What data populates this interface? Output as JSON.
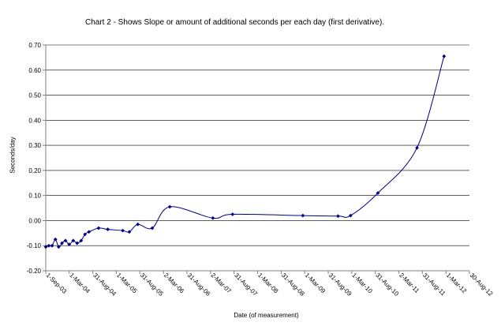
{
  "chart_data": {
    "type": "line",
    "title": "Chart 2 - Shows Slope or amount of additional seconds per each day  (first derivative).",
    "xlabel": "Date (of measurement)",
    "ylabel": "Seconds/day",
    "xlim": [
      "2003-09-01",
      "2012-08-30"
    ],
    "ylim": [
      -0.2,
      0.7
    ],
    "y_ticks": [
      "-0.20",
      "-0.10",
      "0.00",
      "0.10",
      "0.20",
      "0.30",
      "0.40",
      "0.50",
      "0.60",
      "0.70"
    ],
    "y_tick_values": [
      -0.2,
      -0.1,
      0.0,
      0.1,
      0.2,
      0.3,
      0.4,
      0.5,
      0.6,
      0.7
    ],
    "x_ticks": [
      {
        "label": "1-Sep-03",
        "date": "2003-09-01"
      },
      {
        "label": "1-Mar-04",
        "date": "2004-03-01"
      },
      {
        "label": "31-Aug-04",
        "date": "2004-08-31"
      },
      {
        "label": "1-Mar-05",
        "date": "2005-03-01"
      },
      {
        "label": "31-Aug-05",
        "date": "2005-08-31"
      },
      {
        "label": "2-Mar-06",
        "date": "2006-03-02"
      },
      {
        "label": "31-Aug-06",
        "date": "2006-08-31"
      },
      {
        "label": "2-Mar-07",
        "date": "2007-03-02"
      },
      {
        "label": "31-Aug-07",
        "date": "2007-08-31"
      },
      {
        "label": "1-Mar-08",
        "date": "2008-03-01"
      },
      {
        "label": "31-Aug-08",
        "date": "2008-08-31"
      },
      {
        "label": "1-Mar-09",
        "date": "2009-03-01"
      },
      {
        "label": "31-Aug-09",
        "date": "2009-08-31"
      },
      {
        "label": "1-Mar-10",
        "date": "2010-03-01"
      },
      {
        "label": "31-Aug-10",
        "date": "2010-08-31"
      },
      {
        "label": "2-Mar-11",
        "date": "2011-03-02"
      },
      {
        "label": "31-Aug-11",
        "date": "2011-08-31"
      },
      {
        "label": "1-Mar-12",
        "date": "2012-03-01"
      },
      {
        "label": "30-Aug-12",
        "date": "2012-08-30"
      }
    ],
    "grid": "horizontal",
    "legend": "none",
    "colors": {
      "series": "#000080",
      "grid": "#000000",
      "axis": "#808080"
    },
    "series": [
      {
        "smooth": true,
        "marker": "diamond",
        "points": [
          {
            "x": "2003-09-01",
            "y": -0.105
          },
          {
            "x": "2003-09-25",
            "y": -0.1
          },
          {
            "x": "2003-10-20",
            "y": -0.1
          },
          {
            "x": "2003-11-15",
            "y": -0.075
          },
          {
            "x": "2003-12-10",
            "y": -0.105
          },
          {
            "x": "2004-01-05",
            "y": -0.09
          },
          {
            "x": "2004-02-01",
            "y": -0.08
          },
          {
            "x": "2004-03-01",
            "y": -0.095
          },
          {
            "x": "2004-04-01",
            "y": -0.08
          },
          {
            "x": "2004-05-01",
            "y": -0.09
          },
          {
            "x": "2004-06-01",
            "y": -0.08
          },
          {
            "x": "2004-07-01",
            "y": -0.055
          },
          {
            "x": "2004-08-01",
            "y": -0.045
          },
          {
            "x": "2004-10-15",
            "y": -0.03
          },
          {
            "x": "2004-12-25",
            "y": -0.035
          },
          {
            "x": "2005-04-20",
            "y": -0.04
          },
          {
            "x": "2005-06-10",
            "y": -0.045
          },
          {
            "x": "2005-08-15",
            "y": -0.015
          },
          {
            "x": "2005-12-05",
            "y": -0.03
          },
          {
            "x": "2006-04-20",
            "y": 0.055
          },
          {
            "x": "2007-03-20",
            "y": 0.01
          },
          {
            "x": "2007-08-20",
            "y": 0.025
          },
          {
            "x": "2009-02-15",
            "y": 0.02
          },
          {
            "x": "2009-11-15",
            "y": 0.018
          },
          {
            "x": "2010-02-20",
            "y": 0.02
          },
          {
            "x": "2010-09-20",
            "y": 0.11
          },
          {
            "x": "2011-07-20",
            "y": 0.29
          },
          {
            "x": "2012-02-15",
            "y": 0.655
          }
        ]
      }
    ]
  }
}
